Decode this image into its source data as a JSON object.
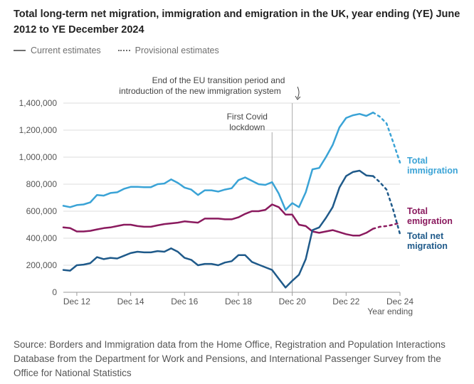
{
  "title": "Total long-term net migration, immigration and emigration in the UK, year ending (YE) June 2012 to YE December 2024",
  "legend": {
    "current": "Current estimates",
    "provisional": "Provisional estimates"
  },
  "source": "Source: Borders and Immigration data from the Home Office, Registration and Population Interactions Database from the Department for Work and Pensions, and International Passenger Survey from the Office for National Statistics",
  "colors": {
    "immigration": "#3aa3d6",
    "emigration": "#8a1a5e",
    "net_migration": "#1f5a8a",
    "grid": "#dddddd",
    "axis": "#999999",
    "annotation_line": "#aaaaaa"
  },
  "chart_data": {
    "type": "line",
    "title": "Total long-term net migration, immigration and emigration in the UK, year ending (YE) June 2012 to YE December 2024",
    "xlabel": "Year ending",
    "ylabel": "",
    "x_range": [
      2012.5,
      2025.0
    ],
    "ylim": [
      0,
      1400000
    ],
    "yticks": [
      0,
      200000,
      400000,
      600000,
      800000,
      1000000,
      1200000,
      1400000
    ],
    "ytick_labels": [
      "0",
      "200,000",
      "400,000",
      "600,000",
      "800,000",
      "1,000,000",
      "1,200,000",
      "1,400,000"
    ],
    "xticks": [
      2013.0,
      2015.0,
      2017.0,
      2019.0,
      2021.0,
      2023.0,
      2025.0
    ],
    "xtick_labels": [
      "Dec 12",
      "Dec 14",
      "Dec 16",
      "Dec 18",
      "Dec 20",
      "Dec 22",
      "Dec 24"
    ],
    "grid": "horizontal",
    "x_dates": [
      2012.5,
      2012.75,
      2013.0,
      2013.25,
      2013.5,
      2013.75,
      2014.0,
      2014.25,
      2014.5,
      2014.75,
      2015.0,
      2015.25,
      2015.5,
      2015.75,
      2016.0,
      2016.25,
      2016.5,
      2016.75,
      2017.0,
      2017.25,
      2017.5,
      2017.75,
      2018.0,
      2018.25,
      2018.5,
      2018.75,
      2019.0,
      2019.25,
      2019.5,
      2019.75,
      2020.0,
      2020.25,
      2020.5,
      2020.75,
      2021.0,
      2021.25,
      2021.5,
      2021.75,
      2022.0,
      2022.25,
      2022.5,
      2022.75,
      2023.0,
      2023.25,
      2023.5,
      2023.75,
      2024.0,
      2024.25,
      2024.5,
      2024.75,
      2025.0
    ],
    "series": [
      {
        "name": "Total immigration",
        "color_key": "immigration",
        "current": [
          640000,
          630000,
          645000,
          650000,
          665000,
          720000,
          715000,
          735000,
          740000,
          765000,
          780000,
          780000,
          778000,
          778000,
          800000,
          805000,
          835000,
          810000,
          775000,
          760000,
          720000,
          755000,
          755000,
          745000,
          760000,
          770000,
          830000,
          850000,
          825000,
          800000,
          795000,
          815000,
          730000,
          610000,
          660000,
          630000,
          740000,
          910000,
          920000,
          1000000,
          1090000,
          1220000,
          1290000,
          1310000,
          1320000,
          1305000,
          1330000
        ],
        "provisional": [
          [
            2024.0,
            1330000
          ],
          [
            2024.25,
            1300000
          ],
          [
            2024.5,
            1250000
          ],
          [
            2024.75,
            1110000
          ],
          [
            2025.0,
            960000
          ]
        ]
      },
      {
        "name": "Total emigration",
        "color_key": "emigration",
        "current": [
          480000,
          475000,
          450000,
          450000,
          455000,
          465000,
          475000,
          480000,
          490000,
          500000,
          500000,
          490000,
          485000,
          485000,
          495000,
          505000,
          510000,
          515000,
          525000,
          520000,
          515000,
          545000,
          545000,
          545000,
          540000,
          540000,
          555000,
          580000,
          600000,
          600000,
          610000,
          650000,
          630000,
          575000,
          575000,
          500000,
          490000,
          450000,
          440000,
          450000,
          460000,
          445000,
          430000,
          420000,
          420000,
          440000,
          470000
        ],
        "provisional": [
          [
            2024.0,
            470000
          ],
          [
            2024.25,
            485000
          ],
          [
            2024.5,
            490000
          ],
          [
            2024.75,
            500000
          ],
          [
            2025.0,
            515000
          ]
        ]
      },
      {
        "name": "Total net migration",
        "color_key": "net_migration",
        "current": [
          165000,
          160000,
          200000,
          205000,
          215000,
          260000,
          245000,
          255000,
          250000,
          270000,
          290000,
          300000,
          295000,
          295000,
          305000,
          300000,
          325000,
          300000,
          255000,
          240000,
          200000,
          210000,
          210000,
          200000,
          220000,
          230000,
          275000,
          275000,
          225000,
          205000,
          185000,
          165000,
          100000,
          35000,
          85000,
          130000,
          245000,
          460000,
          480000,
          550000,
          630000,
          775000,
          860000,
          890000,
          900000,
          865000,
          860000
        ],
        "provisional": [
          [
            2024.0,
            860000
          ],
          [
            2024.25,
            815000
          ],
          [
            2024.5,
            760000
          ],
          [
            2024.75,
            610000
          ],
          [
            2025.0,
            431000
          ]
        ]
      }
    ],
    "series_labels": [
      {
        "key": "immigration",
        "lines": [
          "Total",
          "immigration"
        ]
      },
      {
        "key": "emigration",
        "lines": [
          "Total",
          "emigration"
        ]
      },
      {
        "key": "net_migration",
        "lines": [
          "Total net",
          "migration"
        ]
      }
    ],
    "annotations": [
      {
        "x": 2020.25,
        "lines": [
          "First Covid",
          "lockdown"
        ]
      },
      {
        "x": 2021.0,
        "lines": [
          "End of the EU transition period and",
          "introduction of the new immigration system"
        ]
      }
    ]
  }
}
